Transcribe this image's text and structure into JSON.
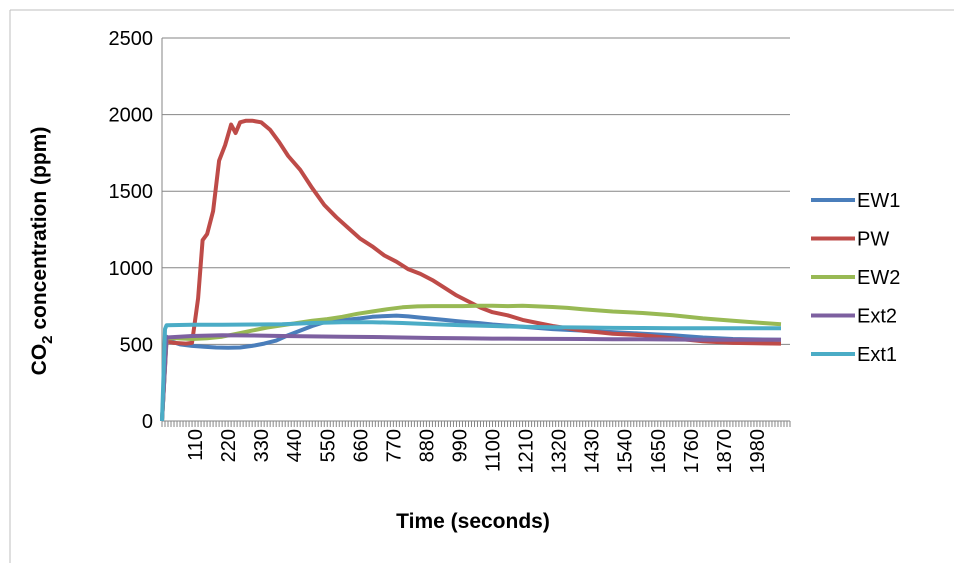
{
  "chart_data": {
    "type": "line",
    "xlabel": "Time (seconds)",
    "ylabel_main": "CO",
    "ylabel_sub": "2",
    "ylabel_rest": " concentration (ppm)",
    "ylim": [
      0,
      2500
    ],
    "yticks": [
      0,
      500,
      1000,
      1500,
      2000,
      2500
    ],
    "xlim": [
      0,
      2090
    ],
    "xticks": [
      110,
      220,
      330,
      440,
      550,
      660,
      770,
      880,
      990,
      1100,
      1210,
      1320,
      1430,
      1540,
      1650,
      1760,
      1870,
      1980
    ],
    "grid": "horizontal",
    "legend_position": "right",
    "series": [
      {
        "name": "EW1",
        "color": "#4a7ebb",
        "x": [
          0,
          15,
          30,
          60,
          100,
          140,
          180,
          220,
          260,
          300,
          340,
          380,
          420,
          460,
          500,
          540,
          580,
          620,
          660,
          700,
          740,
          780,
          820,
          860,
          900,
          940,
          980,
          1020,
          1060,
          1100,
          1200,
          1300,
          1400,
          1500,
          1600,
          1700,
          1800,
          1900,
          2060
        ],
        "y": [
          0,
          550,
          520,
          500,
          490,
          485,
          480,
          478,
          480,
          490,
          505,
          525,
          560,
          590,
          620,
          645,
          655,
          662,
          670,
          680,
          685,
          688,
          683,
          675,
          668,
          660,
          652,
          645,
          638,
          630,
          615,
          600,
          590,
          580,
          570,
          560,
          545,
          535,
          530
        ]
      },
      {
        "name": "PW",
        "color": "#be4b48",
        "x": [
          0,
          15,
          40,
          80,
          100,
          120,
          135,
          150,
          170,
          190,
          210,
          230,
          245,
          260,
          280,
          300,
          330,
          360,
          390,
          420,
          460,
          500,
          540,
          580,
          620,
          660,
          700,
          740,
          780,
          820,
          860,
          900,
          940,
          980,
          1020,
          1060,
          1100,
          1150,
          1200,
          1250,
          1300,
          1400,
          1500,
          1600,
          1700,
          1800,
          1900,
          2060
        ],
        "y": [
          0,
          520,
          510,
          505,
          510,
          800,
          1180,
          1220,
          1370,
          1700,
          1800,
          1935,
          1880,
          1950,
          1960,
          1960,
          1950,
          1900,
          1820,
          1730,
          1640,
          1520,
          1410,
          1330,
          1260,
          1190,
          1140,
          1080,
          1040,
          990,
          960,
          920,
          870,
          820,
          780,
          740,
          710,
          690,
          660,
          640,
          620,
          590,
          570,
          560,
          540,
          520,
          510,
          505
        ]
      },
      {
        "name": "EW2",
        "color": "#98b954",
        "x": [
          0,
          15,
          50,
          100,
          150,
          200,
          250,
          300,
          350,
          400,
          450,
          500,
          550,
          600,
          650,
          700,
          750,
          800,
          850,
          900,
          950,
          1000,
          1050,
          1100,
          1150,
          1200,
          1250,
          1300,
          1350,
          1400,
          1500,
          1600,
          1700,
          1800,
          1900,
          2000,
          2060
        ],
        "y": [
          0,
          540,
          540,
          535,
          540,
          550,
          570,
          590,
          610,
          625,
          640,
          655,
          665,
          680,
          700,
          715,
          730,
          742,
          748,
          750,
          750,
          750,
          752,
          752,
          750,
          752,
          748,
          744,
          738,
          730,
          715,
          705,
          690,
          670,
          655,
          640,
          632
        ]
      },
      {
        "name": "Ext2",
        "color": "#7d60a0",
        "x": [
          0,
          15,
          100,
          200,
          300,
          400,
          500,
          600,
          700,
          800,
          900,
          1000,
          1100,
          1200,
          1300,
          1400,
          1500,
          1600,
          1700,
          1800,
          1900,
          2060
        ],
        "y": [
          0,
          545,
          555,
          560,
          558,
          555,
          552,
          550,
          548,
          545,
          542,
          540,
          538,
          537,
          536,
          535,
          534,
          533,
          532,
          531,
          530,
          530
        ]
      },
      {
        "name": "Ext1",
        "color": "#4bacc6",
        "x": [
          0,
          10,
          15,
          100,
          200,
          300,
          400,
          500,
          600,
          700,
          800,
          900,
          1000,
          1100,
          1200,
          1300,
          1400,
          1500,
          1600,
          1700,
          1800,
          1900,
          2060
        ],
        "y": [
          0,
          600,
          625,
          628,
          628,
          630,
          632,
          640,
          645,
          645,
          640,
          632,
          625,
          620,
          615,
          612,
          610,
          608,
          607,
          606,
          605,
          605,
          605
        ]
      }
    ]
  }
}
